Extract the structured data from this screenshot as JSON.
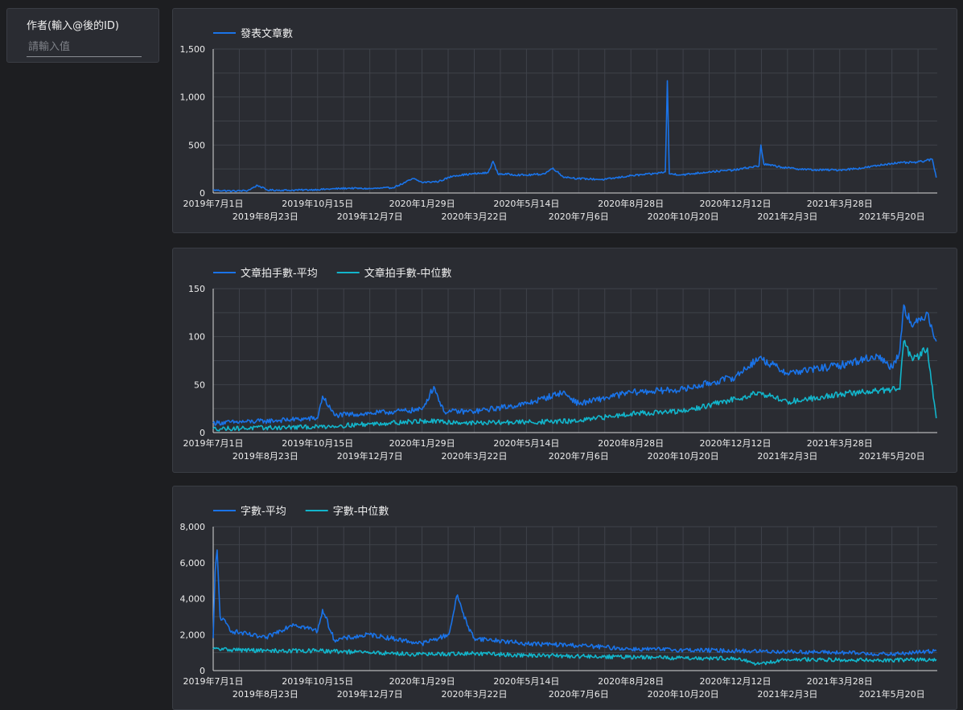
{
  "filter": {
    "label": "作者(輸入@後的ID)",
    "placeholder": "請輸入值"
  },
  "x_ticks": [
    {
      "date": "2019-07-01",
      "label": "2019年7月1日",
      "row": 0
    },
    {
      "date": "2019-08-23",
      "label": "2019年8月23日",
      "row": 1
    },
    {
      "date": "2019-10-15",
      "label": "2019年10月15日",
      "row": 0
    },
    {
      "date": "2019-12-07",
      "label": "2019年12月7日",
      "row": 1
    },
    {
      "date": "2020-01-29",
      "label": "2020年1月29日",
      "row": 0
    },
    {
      "date": "2020-03-22",
      "label": "2020年3月22日",
      "row": 1
    },
    {
      "date": "2020-05-14",
      "label": "2020年5月14日",
      "row": 0
    },
    {
      "date": "2020-07-06",
      "label": "2020年7月6日",
      "row": 1
    },
    {
      "date": "2020-08-28",
      "label": "2020年8月28日",
      "row": 0
    },
    {
      "date": "2020-10-20",
      "label": "2020年10月20日",
      "row": 1
    },
    {
      "date": "2020-12-12",
      "label": "2020年12月12日",
      "row": 0
    },
    {
      "date": "2021-02-03",
      "label": "2021年2月3日",
      "row": 1
    },
    {
      "date": "2021-03-28",
      "label": "2021年3月28日",
      "row": 0
    },
    {
      "date": "2021-05-20",
      "label": "2021年5月20日",
      "row": 1
    }
  ],
  "colors": {
    "series_1": "#1a73e8",
    "series_2": "#12b5cb"
  },
  "chart_data": [
    {
      "type": "line",
      "xlim": [
        "2019-07-01",
        "2021-07-05"
      ],
      "ylim": [
        0,
        1500
      ],
      "yticks": [
        0,
        500,
        1000,
        1500
      ],
      "ytick_labels": [
        "0",
        "500",
        "1,000",
        "1,500"
      ],
      "grid": true,
      "legend_position": "top-left",
      "series": [
        {
          "name": "發表文章數",
          "color": "#1a73e8",
          "points": [
            [
              "2019-07-01",
              30
            ],
            [
              "2019-07-20",
              20
            ],
            [
              "2019-08-05",
              25
            ],
            [
              "2019-08-15",
              80
            ],
            [
              "2019-08-25",
              30
            ],
            [
              "2019-09-15",
              28
            ],
            [
              "2019-10-15",
              35
            ],
            [
              "2019-11-15",
              50
            ],
            [
              "2019-12-07",
              45
            ],
            [
              "2019-12-30",
              55
            ],
            [
              "2020-01-10",
              100
            ],
            [
              "2020-01-20",
              150
            ],
            [
              "2020-01-29",
              110
            ],
            [
              "2020-02-15",
              120
            ],
            [
              "2020-03-01",
              180
            ],
            [
              "2020-03-22",
              200
            ],
            [
              "2020-04-05",
              210
            ],
            [
              "2020-04-10",
              330
            ],
            [
              "2020-04-15",
              200
            ],
            [
              "2020-05-14",
              185
            ],
            [
              "2020-06-01",
              200
            ],
            [
              "2020-06-10",
              260
            ],
            [
              "2020-06-20",
              170
            ],
            [
              "2020-07-06",
              150
            ],
            [
              "2020-08-01",
              140
            ],
            [
              "2020-08-28",
              180
            ],
            [
              "2020-09-20",
              200
            ],
            [
              "2020-10-02",
              220
            ],
            [
              "2020-10-04",
              1170
            ],
            [
              "2020-10-06",
              200
            ],
            [
              "2020-10-20",
              190
            ],
            [
              "2020-11-15",
              220
            ],
            [
              "2020-12-12",
              240
            ],
            [
              "2020-12-28",
              270
            ],
            [
              "2021-01-05",
              280
            ],
            [
              "2021-01-07",
              500
            ],
            [
              "2021-01-10",
              300
            ],
            [
              "2021-02-03",
              260
            ],
            [
              "2021-03-01",
              240
            ],
            [
              "2021-03-28",
              240
            ],
            [
              "2021-04-20",
              260
            ],
            [
              "2021-05-20",
              310
            ],
            [
              "2021-06-15",
              320
            ],
            [
              "2021-06-30",
              350
            ],
            [
              "2021-07-04",
              160
            ]
          ]
        }
      ]
    },
    {
      "type": "line",
      "xlim": [
        "2019-07-01",
        "2021-07-05"
      ],
      "ylim": [
        0,
        150
      ],
      "yticks": [
        0,
        50,
        100,
        150
      ],
      "ytick_labels": [
        "0",
        "50",
        "100",
        "150"
      ],
      "grid": true,
      "legend_position": "top-left",
      "series": [
        {
          "name": "文章拍手數-平均",
          "color": "#1a73e8",
          "points": [
            [
              "2019-07-01",
              10
            ],
            [
              "2019-08-23",
              12
            ],
            [
              "2019-10-15",
              15
            ],
            [
              "2019-10-20",
              38
            ],
            [
              "2019-11-01",
              18
            ],
            [
              "2019-12-07",
              20
            ],
            [
              "2020-01-29",
              24
            ],
            [
              "2020-02-10",
              48
            ],
            [
              "2020-02-20",
              22
            ],
            [
              "2020-03-22",
              22
            ],
            [
              "2020-05-14",
              30
            ],
            [
              "2020-06-20",
              42
            ],
            [
              "2020-07-06",
              30
            ],
            [
              "2020-08-28",
              42
            ],
            [
              "2020-10-20",
              45
            ],
            [
              "2020-12-12",
              58
            ],
            [
              "2021-01-05",
              78
            ],
            [
              "2021-02-03",
              62
            ],
            [
              "2021-03-28",
              70
            ],
            [
              "2021-05-05",
              80
            ],
            [
              "2021-05-20",
              68
            ],
            [
              "2021-05-28",
              85
            ],
            [
              "2021-06-01",
              133
            ],
            [
              "2021-06-10",
              110
            ],
            [
              "2021-06-25",
              125
            ],
            [
              "2021-07-04",
              95
            ]
          ]
        },
        {
          "name": "文章拍手數-中位數",
          "color": "#12b5cb",
          "points": [
            [
              "2019-07-01",
              4
            ],
            [
              "2019-08-23",
              5
            ],
            [
              "2019-10-15",
              6
            ],
            [
              "2019-12-07",
              9
            ],
            [
              "2020-01-29",
              12
            ],
            [
              "2020-03-22",
              10
            ],
            [
              "2020-05-14",
              11
            ],
            [
              "2020-07-06",
              12
            ],
            [
              "2020-08-28",
              20
            ],
            [
              "2020-10-20",
              22
            ],
            [
              "2020-12-12",
              35
            ],
            [
              "2021-01-05",
              42
            ],
            [
              "2021-02-03",
              32
            ],
            [
              "2021-03-28",
              40
            ],
            [
              "2021-05-20",
              45
            ],
            [
              "2021-05-28",
              45
            ],
            [
              "2021-06-01",
              95
            ],
            [
              "2021-06-10",
              75
            ],
            [
              "2021-06-25",
              88
            ],
            [
              "2021-07-04",
              15
            ]
          ]
        }
      ]
    },
    {
      "type": "line",
      "xlim": [
        "2019-07-01",
        "2021-07-05"
      ],
      "ylim": [
        0,
        8000
      ],
      "yticks": [
        0,
        2000,
        4000,
        6000,
        8000
      ],
      "ytick_labels": [
        "0",
        "2,000",
        "4,000",
        "6,000",
        "8,000"
      ],
      "grid": true,
      "legend_position": "top-left",
      "series": [
        {
          "name": "字數-平均",
          "color": "#1a73e8",
          "points": [
            [
              "2019-07-01",
              1800
            ],
            [
              "2019-07-03",
              5500
            ],
            [
              "2019-07-05",
              6700
            ],
            [
              "2019-07-08",
              3000
            ],
            [
              "2019-07-20",
              2200
            ],
            [
              "2019-08-23",
              1800
            ],
            [
              "2019-09-20",
              2600
            ],
            [
              "2019-10-15",
              2200
            ],
            [
              "2019-10-20",
              3400
            ],
            [
              "2019-11-01",
              1700
            ],
            [
              "2019-12-07",
              2000
            ],
            [
              "2020-01-29",
              1500
            ],
            [
              "2020-02-25",
              2000
            ],
            [
              "2020-03-05",
              4200
            ],
            [
              "2020-03-15",
              2500
            ],
            [
              "2020-03-22",
              1800
            ],
            [
              "2020-05-14",
              1500
            ],
            [
              "2020-07-06",
              1400
            ],
            [
              "2020-08-28",
              1200
            ],
            [
              "2020-10-20",
              1150
            ],
            [
              "2020-12-12",
              1100
            ],
            [
              "2021-02-03",
              1050
            ],
            [
              "2021-03-28",
              1000
            ],
            [
              "2021-05-20",
              900
            ],
            [
              "2021-07-04",
              1100
            ]
          ]
        },
        {
          "name": "字數-中位數",
          "color": "#12b5cb",
          "points": [
            [
              "2019-07-01",
              1200
            ],
            [
              "2019-08-23",
              1100
            ],
            [
              "2019-10-15",
              1100
            ],
            [
              "2019-12-07",
              1000
            ],
            [
              "2020-01-29",
              900
            ],
            [
              "2020-03-22",
              950
            ],
            [
              "2020-05-14",
              850
            ],
            [
              "2020-07-06",
              800
            ],
            [
              "2020-08-28",
              750
            ],
            [
              "2020-10-20",
              700
            ],
            [
              "2020-12-12",
              680
            ],
            [
              "2021-01-05",
              350
            ],
            [
              "2021-02-03",
              620
            ],
            [
              "2021-03-28",
              600
            ],
            [
              "2021-05-20",
              580
            ],
            [
              "2021-07-04",
              620
            ]
          ]
        }
      ]
    }
  ]
}
